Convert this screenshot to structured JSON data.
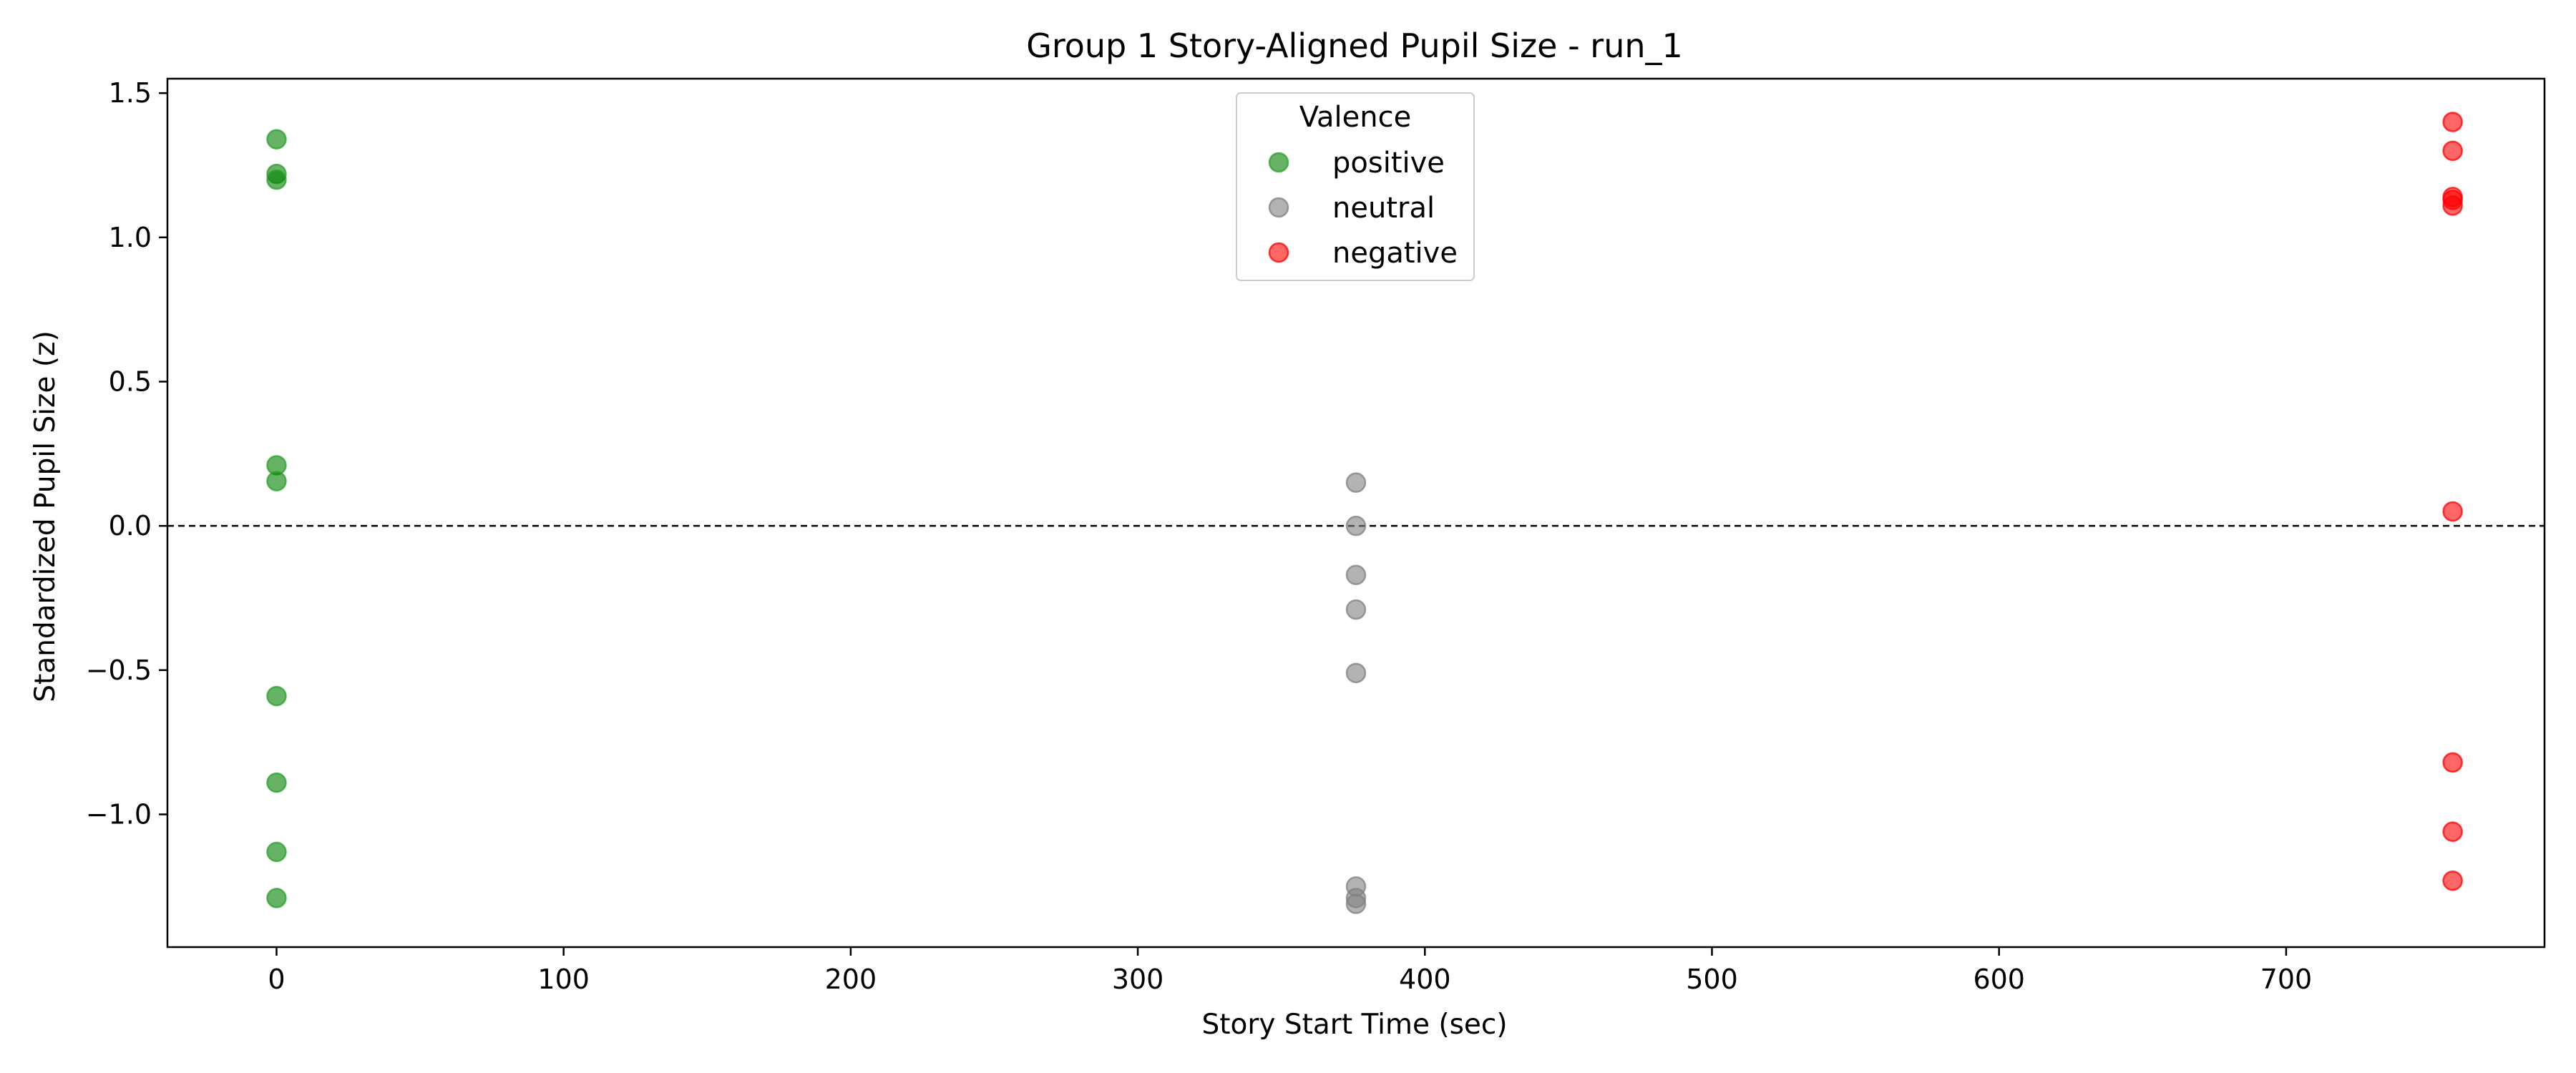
{
  "chart_data": {
    "type": "scatter",
    "title": "Group 1 Story-Aligned Pupil Size - run_1",
    "xlabel": "Story Start Time (sec)",
    "ylabel": "Standardized Pupil Size (z)",
    "xlim": [
      -38,
      790
    ],
    "ylim": [
      -1.46,
      1.55
    ],
    "xticks": [
      0,
      100,
      200,
      300,
      400,
      500,
      600,
      700
    ],
    "xtick_labels": [
      "0",
      "100",
      "200",
      "300",
      "400",
      "500",
      "600",
      "700"
    ],
    "yticks": [
      1.5,
      1.0,
      0.5,
      0.0,
      -0.5,
      -1.0
    ],
    "ytick_labels": [
      "1.5",
      "1.0",
      "0.5",
      "0.0",
      "−0.5",
      "−1.0"
    ],
    "grid": false,
    "reference_line": {
      "y": 0.0,
      "style": "dashed",
      "color": "#000000"
    },
    "legend": {
      "title": "Valence",
      "position": "top-center"
    },
    "series": [
      {
        "name": "positive",
        "color": "#2ca02c",
        "fill": "#008000",
        "points": [
          {
            "x": 0,
            "y": 1.34
          },
          {
            "x": 0,
            "y": 1.22
          },
          {
            "x": 0,
            "y": 1.2
          },
          {
            "x": 0,
            "y": 0.21
          },
          {
            "x": 0,
            "y": 0.155
          },
          {
            "x": 0,
            "y": -0.59
          },
          {
            "x": 0,
            "y": -0.89
          },
          {
            "x": 0,
            "y": -1.13
          },
          {
            "x": 0,
            "y": -1.29
          }
        ]
      },
      {
        "name": "neutral",
        "color": "#808080",
        "fill": "#808080",
        "points": [
          {
            "x": 376,
            "y": 0.15
          },
          {
            "x": 376,
            "y": 0.0
          },
          {
            "x": 376,
            "y": -0.17
          },
          {
            "x": 376,
            "y": -0.29
          },
          {
            "x": 376,
            "y": -0.51
          },
          {
            "x": 376,
            "y": -1.25
          },
          {
            "x": 376,
            "y": -1.29
          },
          {
            "x": 376,
            "y": -1.31
          }
        ]
      },
      {
        "name": "negative",
        "color": "#ff0000",
        "fill": "#ff0000",
        "points": [
          {
            "x": 758,
            "y": 1.4
          },
          {
            "x": 758,
            "y": 1.3
          },
          {
            "x": 758,
            "y": 1.14
          },
          {
            "x": 758,
            "y": 1.13
          },
          {
            "x": 758,
            "y": 1.11
          },
          {
            "x": 758,
            "y": 0.05
          },
          {
            "x": 758,
            "y": -0.82
          },
          {
            "x": 758,
            "y": -1.06
          },
          {
            "x": 758,
            "y": -1.23
          }
        ]
      }
    ]
  }
}
